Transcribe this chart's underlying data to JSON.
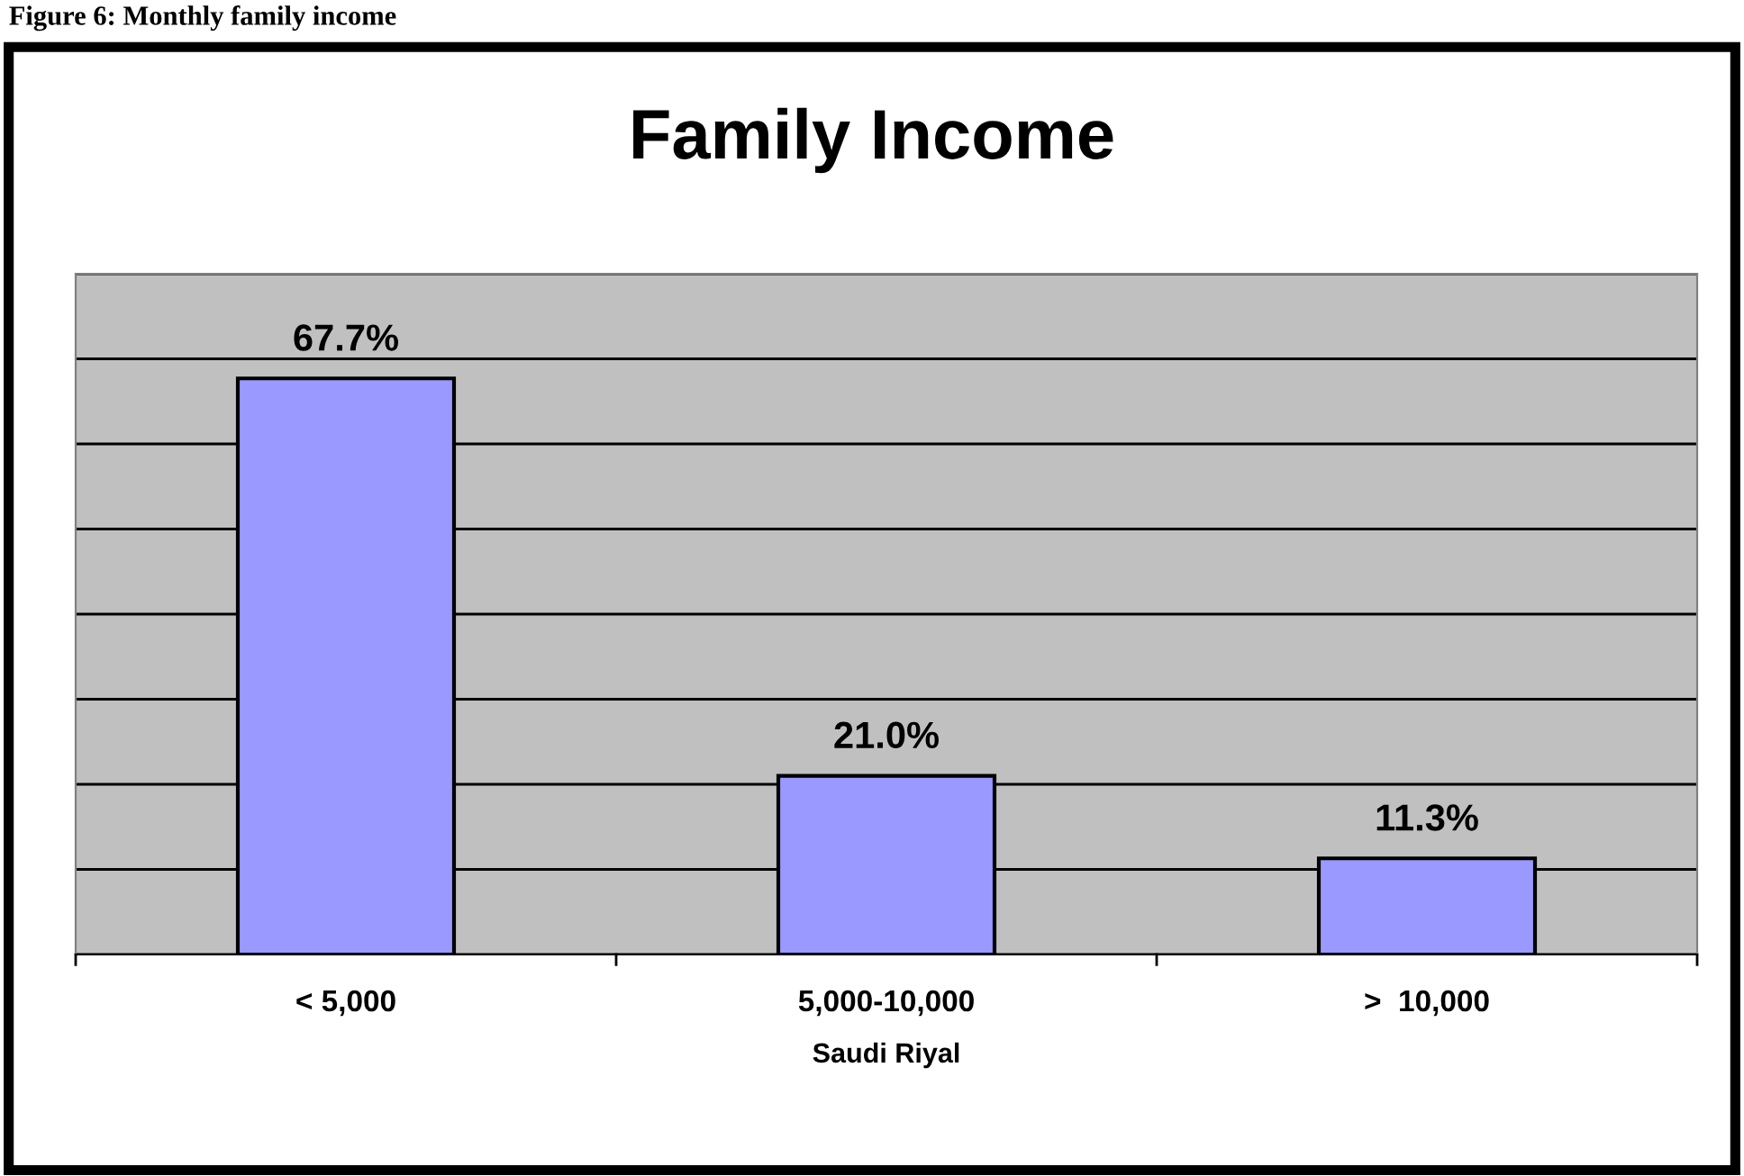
{
  "chart_data": {
    "type": "bar",
    "title": "Family Income",
    "xlabel": "Saudi Riyal",
    "annotations": [
      "Figure 6: Monthly family income"
    ],
    "categories": [
      "< 5,000",
      "5,000-10,000",
      ">  10,000"
    ],
    "values": [
      67.7,
      21.0,
      11.3
    ],
    "color": "#9999ff",
    "value_labels": [
      "67.7%",
      "21.0%",
      "11.3%"
    ],
    "ylim": [
      0,
      80
    ],
    "yticks": [
      {
        "value": 0,
        "label": null
      },
      {
        "value": 10,
        "label": null
      },
      {
        "value": 20,
        "label": null
      },
      {
        "value": 30,
        "label": null
      },
      {
        "value": 40,
        "label": null
      },
      {
        "value": 50,
        "label": null
      },
      {
        "value": 60,
        "label": null
      },
      {
        "value": 70,
        "label": null
      },
      {
        "value": 80,
        "label": null
      }
    ],
    "tick_labels": "x",
    "grid": "y",
    "legend": false
  }
}
